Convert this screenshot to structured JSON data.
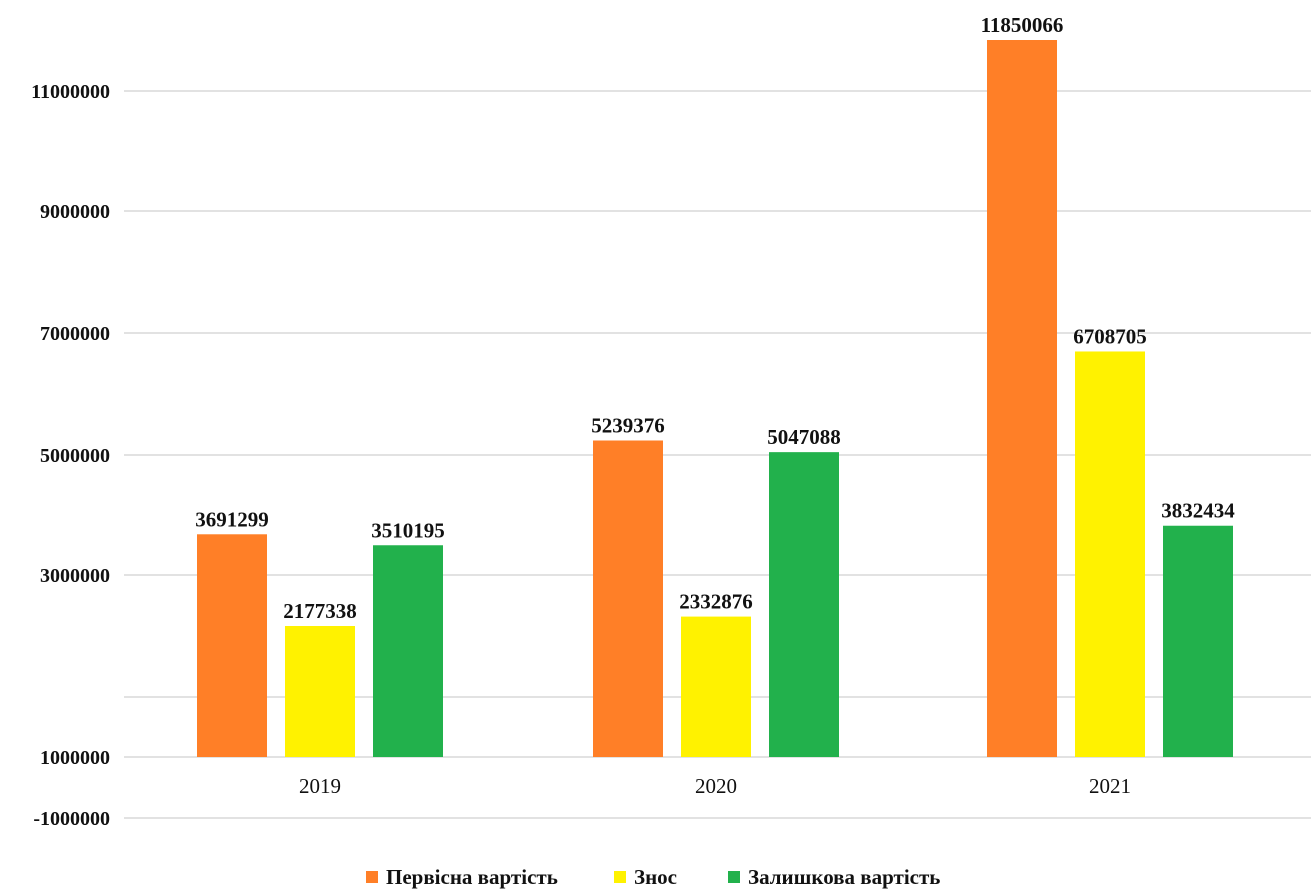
{
  "chart_data": {
    "type": "bar",
    "title": "",
    "xlabel": "",
    "ylabel": "",
    "categories": [
      "2019",
      "2020",
      "2021"
    ],
    "series": [
      {
        "name": "Первісна вартість",
        "color": "#FF7F27",
        "values": [
          3691299,
          5239376,
          11850066
        ]
      },
      {
        "name": "Знос",
        "color": "#FFF200",
        "values": [
          2177338,
          2332876,
          6708705
        ]
      },
      {
        "name": "Залишкова вартість",
        "color": "#22B14C",
        "values": [
          3510195,
          5047088,
          3832434
        ]
      }
    ],
    "y_tick_labels": [
      "-1000000",
      "1000000",
      "3000000",
      "5000000",
      "7000000",
      "9000000",
      "11000000"
    ],
    "grid": true,
    "legend_position": "bottom"
  }
}
